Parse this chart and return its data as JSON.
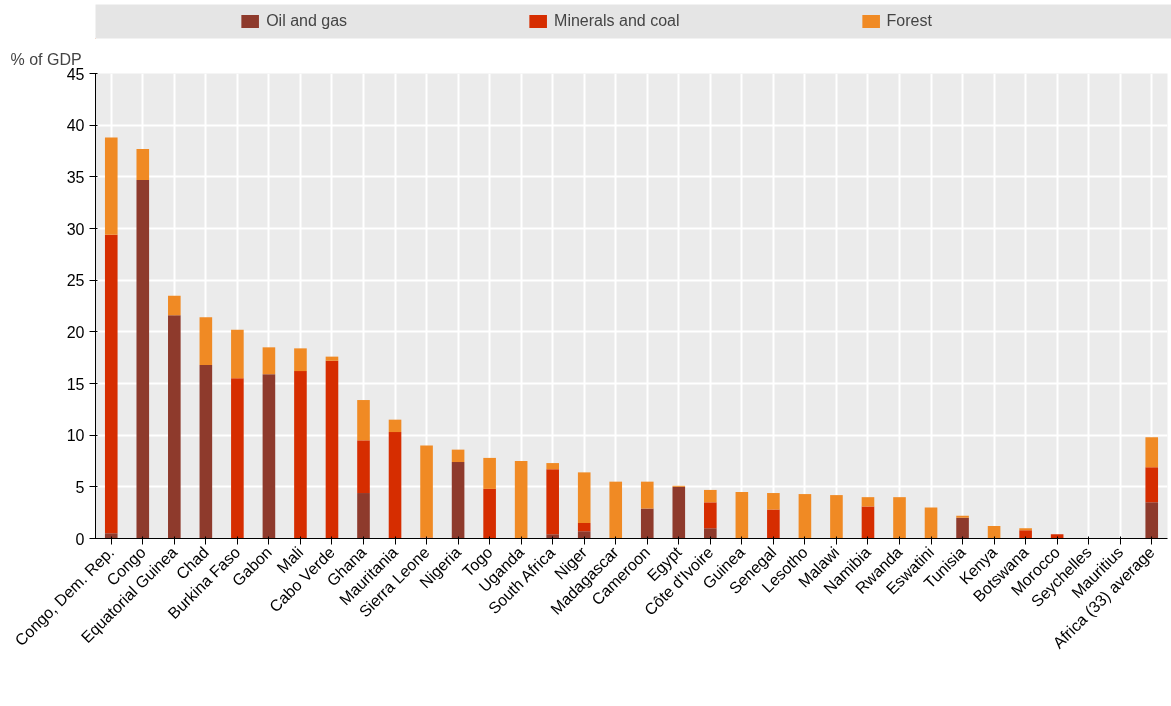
{
  "chart_data": {
    "type": "bar",
    "stacked": true,
    "ylabel": "% of GDP",
    "categories": [
      "Congo, Dem. Rep.",
      "Congo",
      "Equatorial Guinea",
      "Chad",
      "Burkina Faso",
      "Gabon",
      "Mali",
      "Cabo Verde",
      "Ghana",
      "Mauritania",
      "Sierra Leone",
      "Nigeria",
      "Togo",
      "Uganda",
      "South Africa",
      "Niger",
      "Madagascar",
      "Cameroon",
      "Egypt",
      "Côte d'Ivoire",
      "Guinea",
      "Senegal",
      "Lesotho",
      "Malawi",
      "Namibia",
      "Rwanda",
      "Eswatini",
      "Tunisia",
      "Kenya",
      "Botswana",
      "Morocco",
      "Seychelles",
      "Mauritius",
      "Africa (33) average"
    ],
    "series": [
      {
        "name": "Oil and gas",
        "color": "#8e3a2c",
        "values": [
          0.5,
          34.7,
          21.6,
          16.8,
          0,
          15.9,
          0,
          0,
          4.4,
          0,
          0,
          7.4,
          0,
          0,
          0.4,
          0.7,
          0,
          2.9,
          5.0,
          1.0,
          0,
          0,
          0,
          0,
          0,
          0,
          0,
          2.0,
          0,
          0,
          0,
          0,
          0,
          3.5
        ]
      },
      {
        "name": "Minerals and coal",
        "color": "#d62d00",
        "values": [
          28.9,
          0,
          0,
          0,
          15.5,
          0,
          16.2,
          17.2,
          5.1,
          10.3,
          0.1,
          0,
          4.8,
          0,
          6.3,
          0.8,
          0,
          0,
          0,
          2.5,
          0,
          2.8,
          0,
          0,
          3.1,
          0,
          0,
          0,
          0,
          0.8,
          0.4,
          0,
          0,
          3.4
        ]
      },
      {
        "name": "Forest",
        "color": "#f08a24",
        "values": [
          9.4,
          3.0,
          1.9,
          4.6,
          4.7,
          2.6,
          2.2,
          0.4,
          3.9,
          1.2,
          8.9,
          1.2,
          3.0,
          7.5,
          0.6,
          4.9,
          5.5,
          2.6,
          0.1,
          1.2,
          4.5,
          1.6,
          4.3,
          4.2,
          0.9,
          4.0,
          3.0,
          0.2,
          1.2,
          0.2,
          0,
          0,
          0,
          2.9
        ]
      }
    ],
    "ylim": [
      0,
      45
    ],
    "yticks": [
      0,
      5,
      10,
      15,
      20,
      25,
      30,
      35,
      40,
      45
    ],
    "grid": true,
    "legend": "top"
  }
}
